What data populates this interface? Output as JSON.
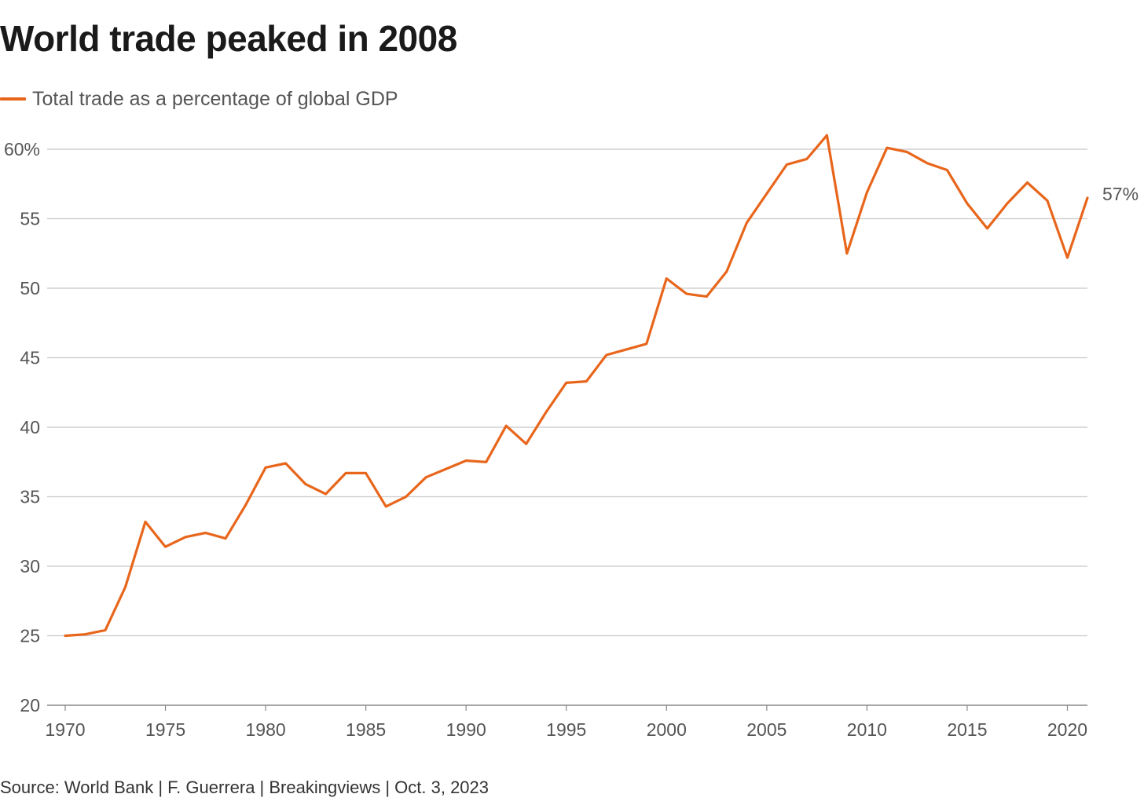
{
  "title": "World trade peaked in 2008",
  "source": "Source: World Bank | F. Guerrera | Breakingviews | Oct. 3, 2023",
  "colors": {
    "line": "#e8661c",
    "grid": "#c8c8c8",
    "axis": "#888888",
    "text": "#555555"
  },
  "chart_data": {
    "type": "line",
    "title": "World trade peaked in 2008",
    "xlabel": "",
    "ylabel": "",
    "xlim": [
      1970,
      2021
    ],
    "ylim": [
      20,
      60
    ],
    "y_ticks": [
      {
        "value": 60,
        "label": "60%"
      },
      {
        "value": 55,
        "label": "55"
      },
      {
        "value": 50,
        "label": "50"
      },
      {
        "value": 45,
        "label": "45"
      },
      {
        "value": 40,
        "label": "40"
      },
      {
        "value": 35,
        "label": "35"
      },
      {
        "value": 30,
        "label": "30"
      },
      {
        "value": 25,
        "label": "25"
      },
      {
        "value": 20,
        "label": "20"
      }
    ],
    "x_ticks": [
      {
        "value": 1970,
        "label": "1970"
      },
      {
        "value": 1975,
        "label": "1975"
      },
      {
        "value": 1980,
        "label": "1980"
      },
      {
        "value": 1985,
        "label": "1985"
      },
      {
        "value": 1990,
        "label": "1990"
      },
      {
        "value": 1995,
        "label": "1995"
      },
      {
        "value": 2000,
        "label": "2000"
      },
      {
        "value": 2005,
        "label": "2005"
      },
      {
        "value": 2010,
        "label": "2010"
      },
      {
        "value": 2015,
        "label": "2015"
      },
      {
        "value": 2020,
        "label": "2020"
      }
    ],
    "grid": true,
    "legend_position": "top-left",
    "series": [
      {
        "name": "Total trade as a percentage of global GDP",
        "color": "#e8661c",
        "end_label": "57%",
        "x": [
          1970,
          1971,
          1972,
          1973,
          1974,
          1975,
          1976,
          1977,
          1978,
          1979,
          1980,
          1981,
          1982,
          1983,
          1984,
          1985,
          1986,
          1987,
          1988,
          1989,
          1990,
          1991,
          1992,
          1993,
          1994,
          1995,
          1996,
          1997,
          1998,
          1999,
          2000,
          2001,
          2002,
          2003,
          2004,
          2005,
          2006,
          2007,
          2008,
          2009,
          2010,
          2011,
          2012,
          2013,
          2014,
          2015,
          2016,
          2017,
          2018,
          2019,
          2020,
          2021
        ],
        "values": [
          25.0,
          25.1,
          25.4,
          28.5,
          33.2,
          31.4,
          32.1,
          32.4,
          32.0,
          34.4,
          37.1,
          37.4,
          35.9,
          35.2,
          36.7,
          36.7,
          34.3,
          35.0,
          36.4,
          37.0,
          37.6,
          37.5,
          40.1,
          38.8,
          41.1,
          43.2,
          43.3,
          45.2,
          45.6,
          46.0,
          50.7,
          49.6,
          49.4,
          51.2,
          54.7,
          56.8,
          58.9,
          59.3,
          61.0,
          52.5,
          56.9,
          60.1,
          59.8,
          59.0,
          58.5,
          56.1,
          54.3,
          56.1,
          57.6,
          56.3,
          52.2,
          56.5
        ]
      }
    ]
  }
}
